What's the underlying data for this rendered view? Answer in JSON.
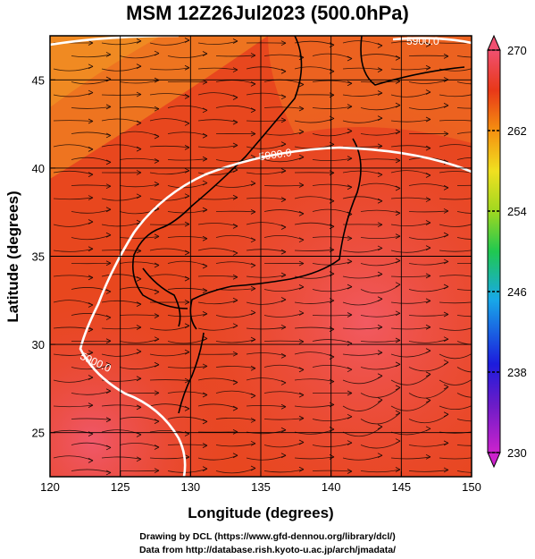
{
  "title": "MSM 12Z26Jul2023 (500.0hPa)",
  "map": {
    "x_axis": {
      "label": "Longitude (degrees)",
      "range": [
        120,
        150
      ],
      "ticks": [
        "120",
        "125",
        "130",
        "135",
        "140",
        "145",
        "150"
      ]
    },
    "y_axis": {
      "label": "Latitude  (degrees)",
      "range": [
        22.5,
        47.5
      ],
      "ticks": [
        "25",
        "30",
        "35",
        "40",
        "45"
      ]
    },
    "grid_lon": [
      125,
      130,
      135,
      140,
      145
    ],
    "grid_lat": [
      25,
      30,
      35,
      40,
      45
    ],
    "contour_label": "5900.0",
    "contour_labels_shown": [
      "5900.0",
      "5900.0",
      "5900.0"
    ],
    "field": "temperature",
    "colors": {
      "land_outline": "#000000",
      "contour": "#ffffff",
      "streamline": "#000000",
      "background_dominant": "#e84a1c"
    }
  },
  "colorbar": {
    "min": 230,
    "max": 270,
    "tick_labels": [
      "270",
      "262",
      "254",
      "246",
      "238",
      "230"
    ],
    "colors": [
      "#cc22cc",
      "#1c1cdc",
      "#18a8e8",
      "#20c850",
      "#a0d820",
      "#f0e020",
      "#f59010",
      "#e83818",
      "#f05070"
    ]
  },
  "credits": {
    "line1": "Drawing by DCL (https://www.gfd-dennou.org/library/dcl/)",
    "line2": "Data from http://database.rish.kyoto-u.ac.jp/arch/jmadata/"
  }
}
